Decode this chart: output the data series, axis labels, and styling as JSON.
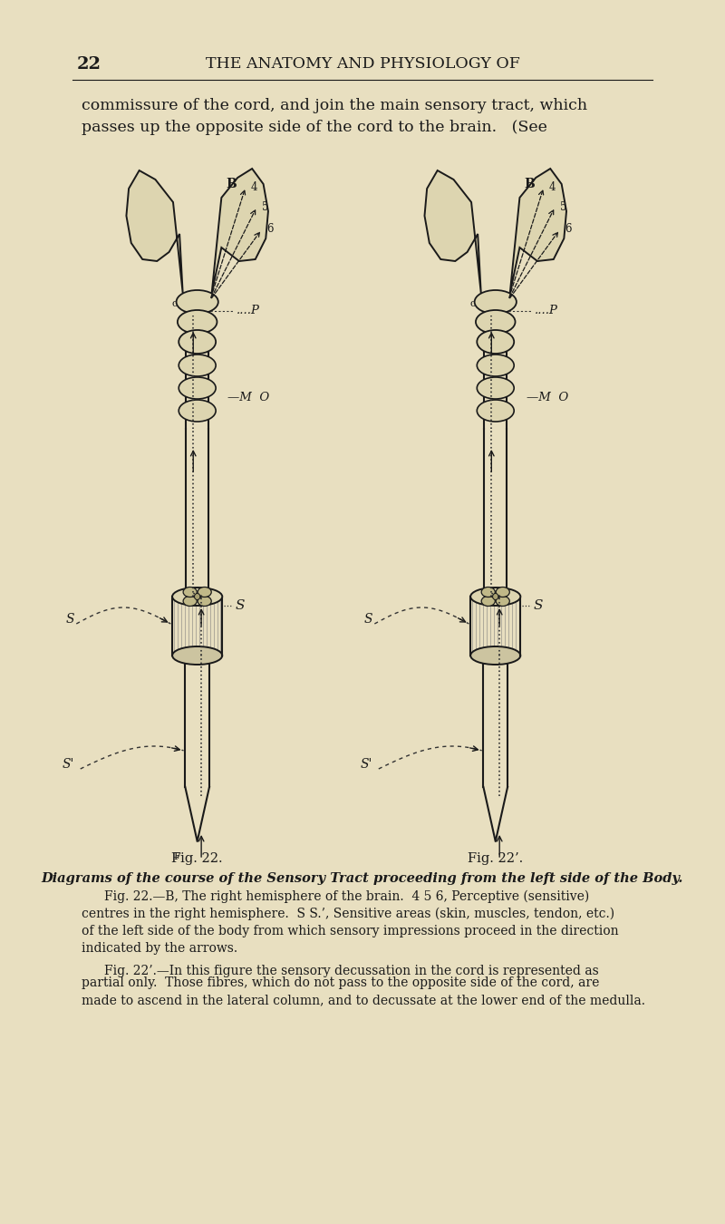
{
  "bg_color": "#e8dfc0",
  "page_bg": "#ddd5b0",
  "text_color": "#1a1a1a",
  "line_color": "#1a1a1a",
  "dashed_color": "#333333",
  "header_number": "22",
  "header_title": "THE ANATOMY AND PHYSIOLOGY OF",
  "intro_line1": "commissure of the cord, and join the main sensory tract, which",
  "intro_line2": "passes up the opposite side of the cord to the brain.   (See",
  "fig1_label": "Fig. 22.",
  "fig2_label": "Fig. 22’.",
  "caption_italic": "Diagrams of the course of the Sensory Tract proceeding from the left side of the Body.",
  "caption1": "Fig. 22.—B, The right hemisphere of the brain.  4 5 6, Perceptive (sensitive)",
  "caption2": "centres in the right hemisphere.  S S.’, Sensitive areas (skin, muscles, tendon, etc.)",
  "caption3": "of the left side of the body from which sensory impressions proceed in the direction",
  "caption4": "indicated by the arrows.",
  "caption5": "Fig. 22’.—In this figure the sensory decussation in the cord is represented as",
  "caption6": "partial only.  Those fibres, which do not pass to the opposite side of the cord, are",
  "caption7": "made to ascend in the lateral column, and to decussate at the lower end of the medulla."
}
